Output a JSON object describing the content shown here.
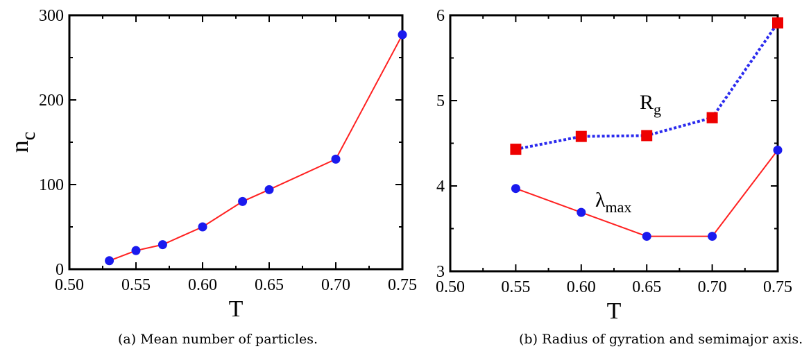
{
  "chart_data": [
    {
      "type": "line",
      "caption": "(a) Mean number of particles.",
      "xlabel": "T",
      "ylabel": "n",
      "ylabel_sub": "c",
      "xlim": [
        0.5,
        0.75
      ],
      "ylim": [
        0,
        300
      ],
      "xticks": [
        0.5,
        0.55,
        0.6,
        0.65,
        0.7,
        0.75
      ],
      "xtick_labels": [
        "0.50",
        "0.55",
        "0.60",
        "0.65",
        "0.70",
        "0.75"
      ],
      "yticks": [
        0,
        100,
        200,
        300
      ],
      "ytick_labels": [
        "0",
        "100",
        "200",
        "300"
      ],
      "grid": false,
      "series": [
        {
          "x": [
            0.53,
            0.55,
            0.57,
            0.6,
            0.63,
            0.65,
            0.7,
            0.75
          ],
          "y": [
            10,
            22,
            29,
            50,
            80,
            94,
            130,
            277
          ],
          "line_color": "#ff2020",
          "line_style": "solid",
          "marker": "circle",
          "marker_color": "#1a1aee"
        }
      ]
    },
    {
      "type": "line",
      "caption": "(b) Radius of gyration and semimajor axis.",
      "xlabel": "T",
      "ylabel": "",
      "xlim": [
        0.5,
        0.75
      ],
      "ylim": [
        3,
        6
      ],
      "xticks": [
        0.5,
        0.55,
        0.6,
        0.65,
        0.7,
        0.75
      ],
      "xtick_labels": [
        "0.50",
        "0.55",
        "0.60",
        "0.65",
        "0.70",
        "0.75"
      ],
      "yticks": [
        3,
        4,
        5,
        6
      ],
      "ytick_labels": [
        "3",
        "4",
        "5",
        "6"
      ],
      "grid": false,
      "series": [
        {
          "label_main": "R",
          "label_sub": "g",
          "x": [
            0.55,
            0.6,
            0.65,
            0.7,
            0.75
          ],
          "y": [
            4.43,
            4.58,
            4.59,
            4.8,
            5.91
          ],
          "line_color": "#2a2aee",
          "line_style": "dotted",
          "marker": "square",
          "marker_color": "#ee0000"
        },
        {
          "label_main": "λ",
          "label_sub": "max",
          "x": [
            0.55,
            0.6,
            0.65,
            0.7,
            0.75
          ],
          "y": [
            3.97,
            3.69,
            3.41,
            3.41,
            4.42
          ],
          "line_color": "#ff2020",
          "line_style": "solid",
          "marker": "circle",
          "marker_color": "#1a1aee"
        }
      ]
    }
  ]
}
